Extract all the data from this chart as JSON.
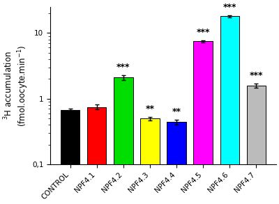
{
  "categories": [
    "CONTROL",
    "NPF4.1",
    "NPF4.2",
    "NPF4.3",
    "NPF4.4",
    "NPF4.5",
    "NPF4.6",
    "NPF4.7"
  ],
  "values": [
    0.68,
    0.75,
    2.1,
    0.5,
    0.44,
    7.5,
    18.0,
    1.6
  ],
  "errors": [
    0.035,
    0.065,
    0.18,
    0.03,
    0.04,
    0.28,
    0.7,
    0.12
  ],
  "colors": [
    "#000000",
    "#ff0000",
    "#00dd00",
    "#ffff00",
    "#0000ff",
    "#ff00ff",
    "#00ffff",
    "#bbbbbb"
  ],
  "bar_edge_colors": [
    "#000000",
    "#000000",
    "#000000",
    "#000000",
    "#000000",
    "#000000",
    "#000000",
    "#000000"
  ],
  "significance": [
    "",
    "",
    "***",
    "**",
    "**",
    "***",
    "***",
    "***"
  ],
  "ylabel_line1": "$^{3}$H accumulation",
  "ylabel_line2": "(fmol.oocyte.min$^{-1}$)",
  "ylim_min": 0.1,
  "ylim_max": 25,
  "yticks": [
    0.1,
    1,
    10
  ],
  "ytick_labels": [
    "0,1",
    "1",
    "10"
  ],
  "background_color": "#ffffff",
  "bar_width": 0.72,
  "sig_fontsize": 9,
  "ylabel_fontsize": 8.5,
  "tick_labelsize": 7.5,
  "xtick_labelsize": 7.5
}
